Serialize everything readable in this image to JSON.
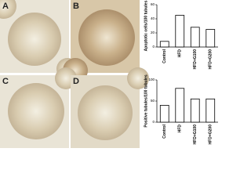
{
  "panels": [
    {
      "label": "A"
    },
    {
      "label": "B"
    },
    {
      "label": "C"
    },
    {
      "label": "D"
    }
  ],
  "chart_data": [
    {
      "type": "bar",
      "y_label": "Apoptotic cells/100 tubules",
      "categories": [
        "Control",
        "HFD",
        "HFD+G100",
        "HFD+G200"
      ],
      "values": [
        8,
        45,
        28,
        25
      ],
      "color": "#ffffff",
      "ylim": [
        0,
        60
      ],
      "yticks": [
        0,
        20,
        40,
        60
      ]
    },
    {
      "type": "bar",
      "y_label": "Positive tubules/100 tubules",
      "categories": [
        "Control",
        "HFD",
        "HFD+G100",
        "HFD+G200"
      ],
      "values": [
        40,
        80,
        55,
        55
      ],
      "color": "#ffffff",
      "ylim": [
        0,
        100
      ],
      "yticks": [
        0,
        50,
        100
      ]
    }
  ]
}
